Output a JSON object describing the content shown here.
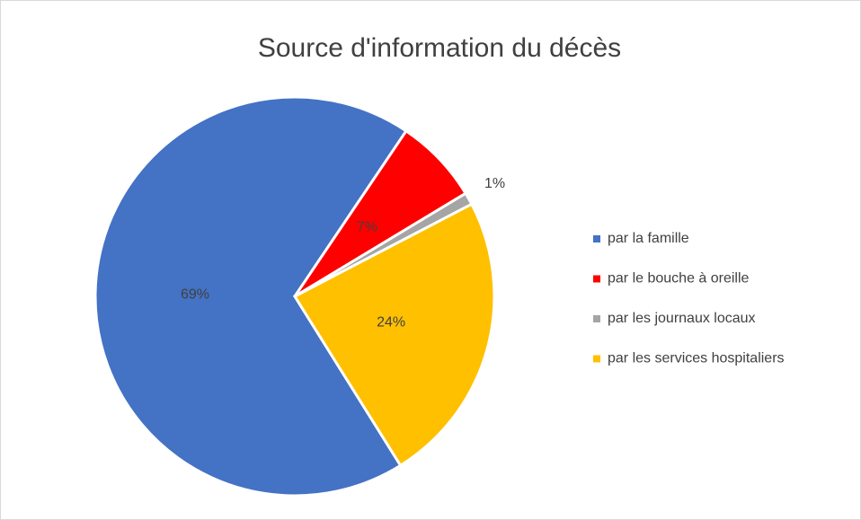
{
  "chart_data": {
    "type": "pie",
    "title": "Source d'information du décès",
    "categories": [
      "par la famille",
      "par le bouche à oreille",
      "par les journaux locaux",
      "par les services hospitaliers"
    ],
    "values": [
      69,
      7,
      1,
      24
    ],
    "value_labels": [
      "69%",
      "7%",
      "1%",
      "24%"
    ],
    "colors": [
      "#4472c4",
      "#ff0000",
      "#a5a5a5",
      "#ffc000"
    ],
    "legend": "right"
  }
}
